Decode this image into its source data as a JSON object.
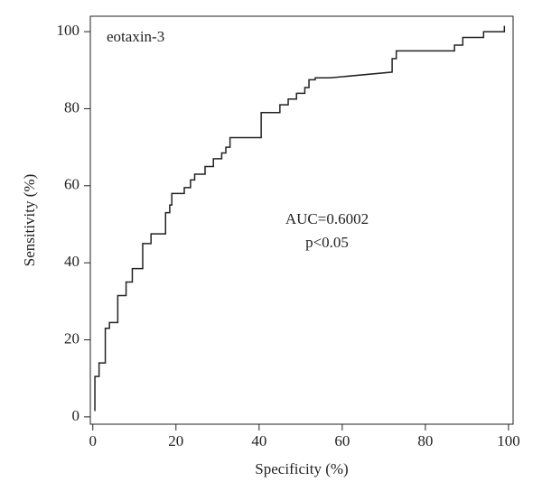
{
  "chart_data": {
    "type": "line",
    "xlabel": "Specificity (%)",
    "ylabel": "Sensitivity (%)",
    "annotations": [
      "eotaxin-3",
      "AUC=0.6002",
      "p<0.05"
    ],
    "x": [
      0.5,
      0.5,
      1.5,
      1.5,
      3,
      3,
      4,
      4,
      6,
      6,
      8,
      8,
      9.5,
      9.5,
      12,
      12,
      14,
      14,
      17.5,
      17.5,
      18.5,
      18.5,
      19,
      19,
      22,
      22,
      23.5,
      23.5,
      24.5,
      24.5,
      27,
      27,
      29,
      29,
      31,
      31,
      32,
      32,
      33,
      33,
      40.5,
      40.5,
      45,
      45,
      47,
      47,
      49,
      49,
      51,
      51,
      52,
      52,
      53.5,
      53.5,
      57,
      72,
      72,
      73,
      73,
      87,
      87,
      89,
      89,
      94,
      94,
      99,
      99
    ],
    "series": [
      {
        "color": "#222222",
        "values": [
          1.5,
          10.5,
          10.5,
          14,
          14,
          23,
          23,
          24.5,
          24.5,
          31.5,
          31.5,
          35,
          35,
          38.5,
          38.5,
          45,
          45,
          47.5,
          47.5,
          53,
          53,
          55,
          55,
          58,
          58,
          59.5,
          59.5,
          61.5,
          61.5,
          63,
          63,
          65,
          65,
          67,
          67,
          68.5,
          68.5,
          70,
          70,
          72.5,
          72.5,
          79,
          79,
          81,
          81,
          82.5,
          82.5,
          84,
          84,
          85.5,
          85.5,
          87.5,
          87.5,
          88,
          88,
          89.5,
          93,
          93,
          95,
          95,
          96.5,
          96.5,
          98.5,
          98.5,
          100,
          100,
          101.5
        ]
      }
    ],
    "xlim": [
      -0.6,
      101.1
    ],
    "ylim": [
      -1.9,
      104
    ],
    "xticks": [
      0,
      20,
      40,
      60,
      80,
      100
    ],
    "yticks": [
      0,
      20,
      40,
      60,
      80,
      100
    ]
  }
}
